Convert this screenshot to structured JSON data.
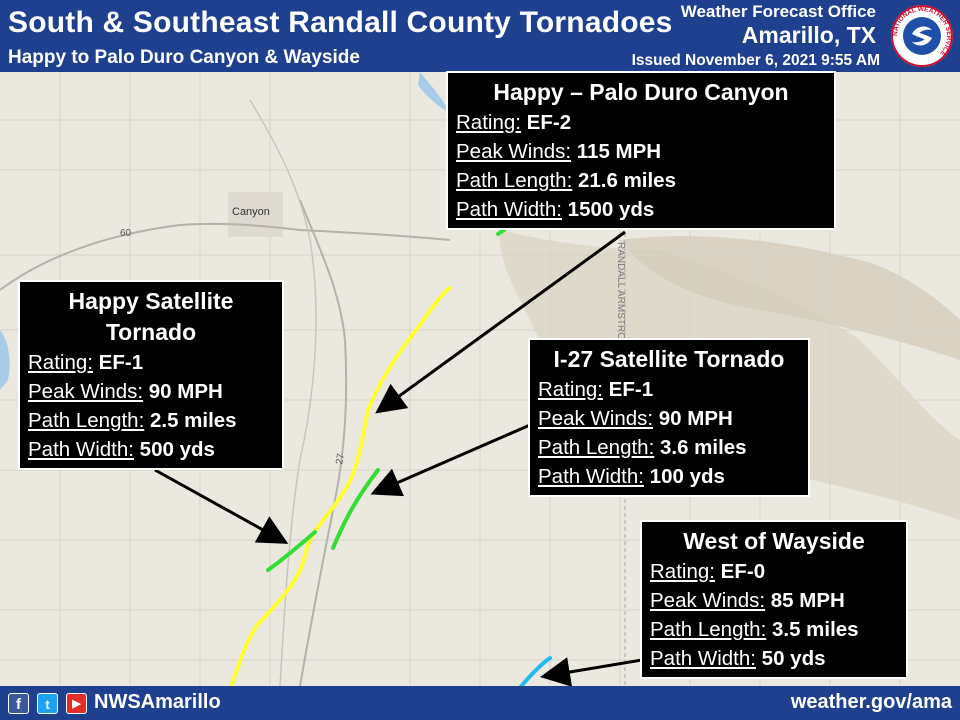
{
  "header": {
    "title": "South & Southeast Randall County Tornadoes",
    "subtitle": "Happy to Palo Duro Canyon & Wayside",
    "office_name": "Weather Forecast Office",
    "office_city": "Amarillo, TX",
    "issued": "Issued November 6, 2021 9:55 AM",
    "logo_text": "NATIONAL WEATHER SERVICE"
  },
  "map_labels": {
    "town": "Canyon",
    "highway_60": "60",
    "highway_27": "27",
    "county_line": "RANDALL ARMSTRONG"
  },
  "labels": {
    "rating": "Rating:",
    "peak_winds": "Peak Winds:",
    "path_length": "Path Length:",
    "path_width": "Path Width:"
  },
  "tornadoes": {
    "happy_pdc": {
      "title": "Happy – Palo Duro Canyon",
      "rating": "EF-2",
      "peak_winds": "115 MPH",
      "path_length": "21.6 miles",
      "path_width": "1500 yds",
      "color": "#ffff33"
    },
    "happy_sat": {
      "title": "Happy Satellite Tornado",
      "rating": "EF-1",
      "peak_winds": "90 MPH",
      "path_length": "2.5 miles",
      "path_width": "500 yds",
      "color": "#33dd33"
    },
    "i27": {
      "title": "I-27 Satellite Tornado",
      "rating": "EF-1",
      "peak_winds": "90 MPH",
      "path_length": "3.6 miles",
      "path_width": "100 yds",
      "color": "#33dd33"
    },
    "wayside": {
      "title": "West of Wayside",
      "rating": "EF-0",
      "peak_winds": "85 MPH",
      "path_length": "3.5 miles",
      "path_width": "50 yds",
      "color": "#22bbee"
    }
  },
  "footer": {
    "facebook_icon": "f",
    "twitter_icon": "t",
    "youtube_icon": "▶",
    "handle": "NWSAmarillo",
    "website": "weather.gov/ama"
  }
}
